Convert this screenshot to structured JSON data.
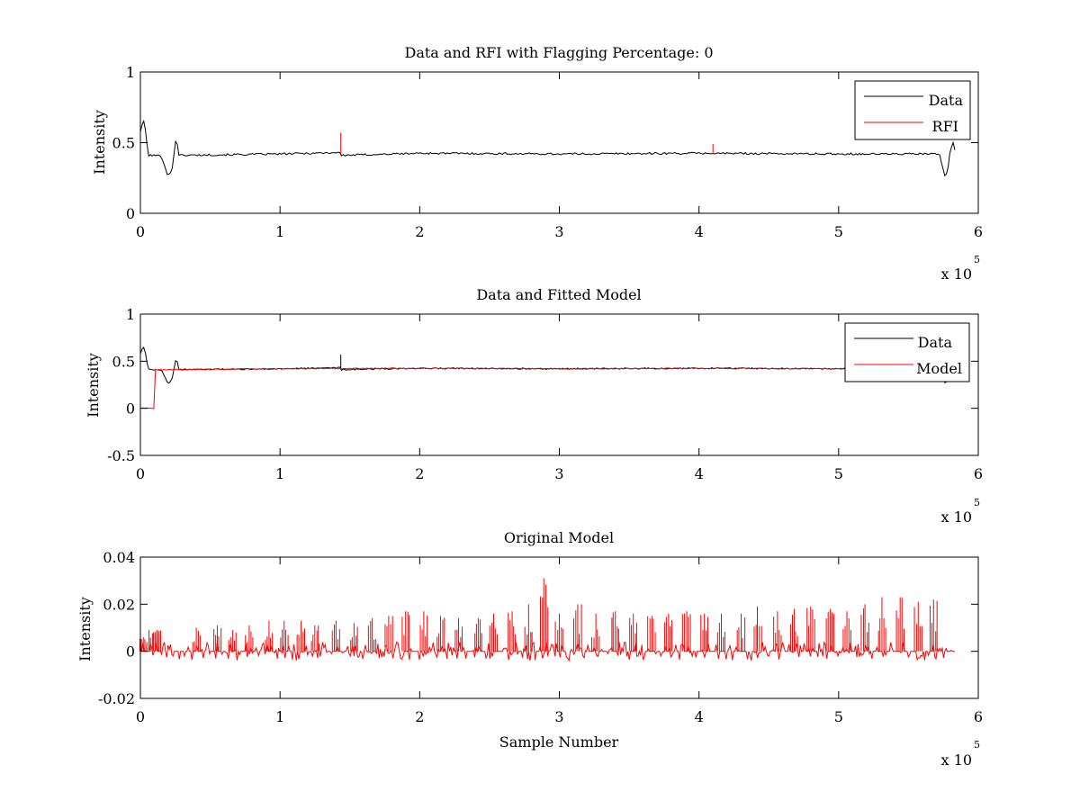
{
  "figure": {
    "background": "#ffffff"
  },
  "chart_data": [
    {
      "type": "line",
      "title": "Data and RFI with Flagging Percentage: 0",
      "xlabel": "",
      "ylabel": "Intensity",
      "xlim": [
        0,
        600000
      ],
      "ylim": [
        0,
        1
      ],
      "x_ticks": [
        0,
        100000,
        200000,
        300000,
        400000,
        500000,
        600000
      ],
      "x_tick_labels": [
        "0",
        "1",
        "2",
        "3",
        "4",
        "5",
        "6"
      ],
      "y_ticks": [
        0,
        0.5,
        1
      ],
      "y_tick_labels": [
        "0",
        "0.5",
        "1"
      ],
      "x_multiplier": {
        "base": "x 10",
        "exponent": "5"
      },
      "grid": false,
      "legend": {
        "position": "top-right",
        "entries": [
          "Data",
          "RFI"
        ]
      },
      "series": [
        {
          "name": "Data",
          "color": "#000000",
          "points": [
            [
              0,
              0.58
            ],
            [
              1500,
              0.64
            ],
            [
              3000,
              0.65
            ],
            [
              4500,
              0.5
            ],
            [
              6000,
              0.41
            ],
            [
              9000,
              0.41
            ],
            [
              12000,
              0.41
            ],
            [
              15000,
              0.405
            ],
            [
              17000,
              0.35
            ],
            [
              19000,
              0.28
            ],
            [
              21000,
              0.27
            ],
            [
              23000,
              0.33
            ],
            [
              25000,
              0.5
            ],
            [
              26000,
              0.55
            ],
            [
              27000,
              0.41
            ],
            [
              100000,
              0.42
            ],
            [
              143000,
              0.43
            ],
            [
              143500,
              0.41
            ],
            [
              200000,
              0.425
            ],
            [
              300000,
              0.42
            ],
            [
              400000,
              0.425
            ],
            [
              500000,
              0.42
            ],
            [
              572000,
              0.42
            ],
            [
              574000,
              0.35
            ],
            [
              576000,
              0.27
            ],
            [
              578000,
              0.29
            ],
            [
              580000,
              0.45
            ],
            [
              582000,
              0.5
            ],
            [
              584000,
              0.42
            ]
          ],
          "noise": 0.007
        },
        {
          "name": "RFI",
          "color": "#ff0000",
          "spikes": [
            [
              143500,
              0.42,
              0.57
            ],
            [
              410000,
              0.42,
              0.49
            ]
          ]
        }
      ]
    },
    {
      "type": "line",
      "title": "Data and Fitted Model",
      "xlabel": "",
      "ylabel": "Intensity",
      "xlim": [
        0,
        600000
      ],
      "ylim": [
        -0.5,
        1
      ],
      "x_ticks": [
        0,
        100000,
        200000,
        300000,
        400000,
        500000,
        600000
      ],
      "x_tick_labels": [
        "0",
        "1",
        "2",
        "3",
        "4",
        "5",
        "6"
      ],
      "y_ticks": [
        -0.5,
        0,
        0.5,
        1
      ],
      "y_tick_labels": [
        "-0.5",
        "0",
        "0.5",
        "1"
      ],
      "x_multiplier": {
        "base": "x 10",
        "exponent": "5"
      },
      "grid": false,
      "legend": {
        "position": "top-right",
        "entries": [
          "Data",
          "Model"
        ]
      },
      "series": [
        {
          "name": "Data",
          "color": "#000000",
          "points": [
            [
              0,
              0.58
            ],
            [
              1500,
              0.64
            ],
            [
              3000,
              0.65
            ],
            [
              4500,
              0.5
            ],
            [
              6000,
              0.41
            ],
            [
              9000,
              0.41
            ],
            [
              12000,
              0.41
            ],
            [
              15000,
              0.405
            ],
            [
              17000,
              0.35
            ],
            [
              19000,
              0.28
            ],
            [
              21000,
              0.27
            ],
            [
              23000,
              0.33
            ],
            [
              25000,
              0.5
            ],
            [
              26000,
              0.55
            ],
            [
              27000,
              0.41
            ],
            [
              100000,
              0.42
            ],
            [
              143000,
              0.43
            ],
            [
              143500,
              0.41
            ],
            [
              200000,
              0.425
            ],
            [
              300000,
              0.42
            ],
            [
              400000,
              0.425
            ],
            [
              500000,
              0.42
            ],
            [
              572000,
              0.42
            ],
            [
              574000,
              0.35
            ],
            [
              576000,
              0.27
            ],
            [
              578000,
              0.29
            ],
            [
              580000,
              0.45
            ],
            [
              582000,
              0.5
            ],
            [
              584000,
              0.42
            ]
          ],
          "noise": 0.007,
          "spikes": [
            [
              143500,
              0.42,
              0.57
            ]
          ]
        },
        {
          "name": "Model",
          "color": "#ff0000",
          "points": [
            [
              0,
              0
            ],
            [
              10000,
              0
            ],
            [
              10000,
              0.41
            ],
            [
              100000,
              0.42
            ],
            [
              200000,
              0.425
            ],
            [
              300000,
              0.42
            ],
            [
              400000,
              0.425
            ],
            [
              500000,
              0.42
            ],
            [
              584000,
              0.42
            ]
          ],
          "noise": 0.005
        }
      ]
    },
    {
      "type": "line",
      "title": "Original Model",
      "xlabel": "Sample Number",
      "ylabel": "Intensity",
      "xlim": [
        0,
        600000
      ],
      "ylim": [
        -0.02,
        0.04
      ],
      "x_ticks": [
        0,
        100000,
        200000,
        300000,
        400000,
        500000,
        600000
      ],
      "x_tick_labels": [
        "0",
        "1",
        "2",
        "3",
        "4",
        "5",
        "6"
      ],
      "y_ticks": [
        -0.02,
        0,
        0.02,
        0.04
      ],
      "y_tick_labels": [
        "-0.02",
        "0",
        "0.02",
        "0.04"
      ],
      "x_multiplier": {
        "base": "x 10",
        "exponent": "5"
      },
      "grid": false,
      "series": [
        {
          "color": "#ff0000",
          "baseline": 0,
          "x_range": [
            0,
            584000
          ],
          "spike_peaks": [
            [
              2000,
              0.006
            ],
            [
              6000,
              0.009
            ],
            [
              12000,
              0.009
            ],
            [
              40000,
              0.01
            ],
            [
              55000,
              0.011
            ],
            [
              66000,
              0.009
            ],
            [
              78000,
              0.011
            ],
            [
              92000,
              0.013
            ],
            [
              103000,
              0.013
            ],
            [
              115000,
              0.013
            ],
            [
              125000,
              0.011
            ],
            [
              140000,
              0.013
            ],
            [
              153000,
              0.012
            ],
            [
              166000,
              0.014
            ],
            [
              178000,
              0.015
            ],
            [
              190000,
              0.017
            ],
            [
              203000,
              0.017
            ],
            [
              215000,
              0.015
            ],
            [
              228000,
              0.014
            ],
            [
              242000,
              0.014
            ],
            [
              253000,
              0.016
            ],
            [
              266000,
              0.017
            ],
            [
              278000,
              0.02
            ],
            [
              289000,
              0.031
            ],
            [
              300000,
              0.016
            ],
            [
              313000,
              0.02
            ],
            [
              326000,
              0.016
            ],
            [
              340000,
              0.017
            ],
            [
              353000,
              0.016
            ],
            [
              366000,
              0.015
            ],
            [
              378000,
              0.016
            ],
            [
              391000,
              0.017
            ],
            [
              404000,
              0.016
            ],
            [
              416000,
              0.016
            ],
            [
              430000,
              0.016
            ],
            [
              442000,
              0.019
            ],
            [
              456000,
              0.017
            ],
            [
              468000,
              0.018
            ],
            [
              480000,
              0.019
            ],
            [
              494000,
              0.018
            ],
            [
              506000,
              0.017
            ],
            [
              519000,
              0.02
            ],
            [
              531000,
              0.023
            ],
            [
              544000,
              0.023
            ],
            [
              557000,
              0.021
            ],
            [
              568000,
              0.022
            ]
          ],
          "noise_min": -0.004,
          "noise_max": 0.004
        }
      ]
    }
  ]
}
